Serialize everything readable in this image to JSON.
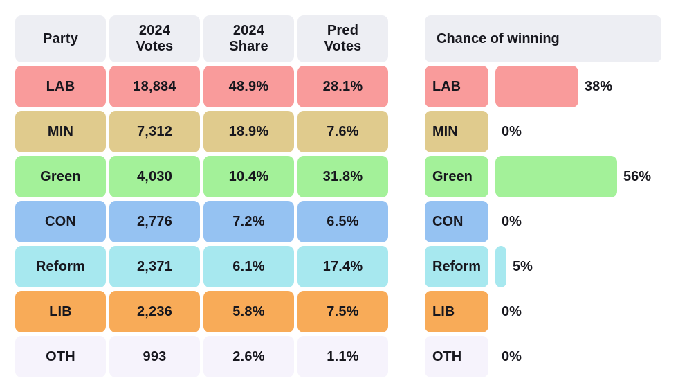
{
  "table_columns": [
    "Party",
    "2024\nVotes",
    "2024\nShare",
    "Pred\nVotes"
  ],
  "parties": [
    {
      "name": "LAB",
      "votes_2024": "18,884",
      "share_2024": "48.9%",
      "pred_votes": "28.1%",
      "color": "#f99b9b",
      "win_chance_pct": 38,
      "win_chance_label": "38%"
    },
    {
      "name": "MIN",
      "votes_2024": "7,312",
      "share_2024": "18.9%",
      "pred_votes": "7.6%",
      "color": "#e0cb8d",
      "win_chance_pct": 0,
      "win_chance_label": "0%"
    },
    {
      "name": "Green",
      "votes_2024": "4,030",
      "share_2024": "10.4%",
      "pred_votes": "31.8%",
      "color": "#a3f199",
      "win_chance_pct": 56,
      "win_chance_label": "56%"
    },
    {
      "name": "CON",
      "votes_2024": "2,776",
      "share_2024": "7.2%",
      "pred_votes": "6.5%",
      "color": "#95c2f2",
      "win_chance_pct": 0,
      "win_chance_label": "0%"
    },
    {
      "name": "Reform",
      "votes_2024": "2,371",
      "share_2024": "6.1%",
      "pred_votes": "17.4%",
      "color": "#a7e8ef",
      "win_chance_pct": 5,
      "win_chance_label": "5%"
    },
    {
      "name": "LIB",
      "votes_2024": "2,236",
      "share_2024": "5.8%",
      "pred_votes": "7.5%",
      "color": "#f8ab58",
      "win_chance_pct": 0,
      "win_chance_label": "0%"
    },
    {
      "name": "OTH",
      "votes_2024": "993",
      "share_2024": "2.6%",
      "pred_votes": "1.1%",
      "color": "#f6f3fc",
      "win_chance_pct": 0,
      "win_chance_label": "0%"
    }
  ],
  "chance": {
    "title": "Chance of winning"
  },
  "style": {
    "header_bg": "#edeef3",
    "text_color": "#17171e",
    "background": "#ffffff"
  },
  "chart_data": [
    {
      "type": "table",
      "title": "Party results table",
      "columns": [
        "Party",
        "2024 Votes",
        "2024 Share",
        "Pred Votes"
      ],
      "rows": [
        [
          "LAB",
          "18,884",
          "48.9%",
          "28.1%"
        ],
        [
          "MIN",
          "7,312",
          "18.9%",
          "7.6%"
        ],
        [
          "Green",
          "4,030",
          "10.4%",
          "31.8%"
        ],
        [
          "CON",
          "2,776",
          "7.2%",
          "6.5%"
        ],
        [
          "Reform",
          "2,371",
          "6.1%",
          "17.4%"
        ],
        [
          "LIB",
          "2,236",
          "5.8%",
          "7.5%"
        ],
        [
          "OTH",
          "993",
          "2.6%",
          "1.1%"
        ]
      ]
    },
    {
      "type": "bar",
      "orientation": "horizontal",
      "title": "Chance of winning",
      "categories": [
        "LAB",
        "MIN",
        "Green",
        "CON",
        "Reform",
        "LIB",
        "OTH"
      ],
      "values": [
        38,
        0,
        56,
        0,
        5,
        0,
        0
      ],
      "unit": "%",
      "xlim": [
        0,
        100
      ],
      "bar_colors": [
        "#f99b9b",
        "#e0cb8d",
        "#a3f199",
        "#95c2f2",
        "#a7e8ef",
        "#f8ab58",
        "#f6f3fc"
      ],
      "data_labels": [
        "38%",
        "0%",
        "56%",
        "0%",
        "5%",
        "0%",
        "0%"
      ],
      "grid": false,
      "legend": false
    }
  ]
}
